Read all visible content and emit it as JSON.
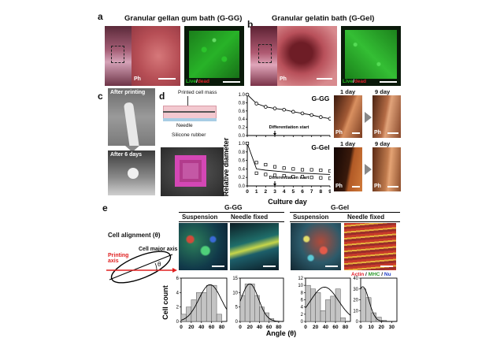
{
  "panels": {
    "a": {
      "letter": "a",
      "title": "Granular gellan gum bath (G-GG)",
      "ph": "Ph",
      "live": "Live",
      "slash": "/",
      "dead": "dead"
    },
    "b": {
      "letter": "b",
      "title": "Granular gelatin bath (G-Gel)",
      "ph": "Ph",
      "live": "Live",
      "slash": "/",
      "dead": "dead"
    },
    "c": {
      "letter": "c",
      "after_printing": "After printing",
      "after_6_days": "After 6 days"
    },
    "d": {
      "letter": "d",
      "printed_cell_mass": "Printed cell mass",
      "needle": "Needle",
      "silicone_rubber": "Silicone rubber",
      "day1": "1 day",
      "day9": "9 day",
      "ph": "Ph"
    },
    "e": {
      "letter": "e",
      "cell_alignment": "Cell alignment (θ)",
      "printing_axis_1": "Printing",
      "printing_axis_2": "axis",
      "cell_major_axis": "Cell major axis",
      "theta": "θ",
      "gg_title": "G-GG",
      "gel_title": "G-Gel",
      "suspension": "Suspension",
      "needle_fixed": "Needle fixed",
      "legend_actin": "Actin",
      "legend_slash1": " / ",
      "legend_mhc": "MHC",
      "legend_slash2": " / ",
      "legend_nu": "Nu"
    }
  },
  "colors": {
    "actin": "#e0202a",
    "mhc": "#2f9a2f",
    "nu": "#1f3cc8",
    "live": "#1fbf1f",
    "dead": "#e0202a"
  },
  "chart_data": [
    {
      "type": "line",
      "panel": "d",
      "title": "G-GG",
      "xlabel": "Culture day",
      "ylabel": "Relative diameter",
      "x": [
        0,
        1,
        2,
        3,
        4,
        5,
        6,
        7,
        8,
        9
      ],
      "xlim": [
        0,
        9
      ],
      "ylim": [
        0.0,
        1.0
      ],
      "yticks": [
        "0.0",
        "0.2",
        "0.4",
        "0.6",
        "0.8",
        "1.0"
      ],
      "series": [
        {
          "values": [
            1.0,
            0.78,
            0.7,
            0.66,
            0.63,
            0.58,
            0.54,
            0.5,
            0.45,
            0.41
          ]
        }
      ],
      "annotation": "Differentiation start",
      "annotation_day": 3
    },
    {
      "type": "scatter",
      "panel": "d",
      "title": "G-Gel",
      "xlabel": "Culture day",
      "ylabel": "Relative diameter",
      "x": [
        0,
        1,
        2,
        3,
        4,
        5,
        6,
        7,
        8,
        9
      ],
      "xlim": [
        0,
        9
      ],
      "ylim": [
        0.0,
        1.0
      ],
      "yticks": [
        "0.0",
        "0.2",
        "0.4",
        "0.6",
        "0.8",
        "1.0"
      ],
      "series": [
        {
          "values": [
            1.0,
            0.55,
            0.5,
            0.45,
            0.42,
            0.4,
            0.38,
            0.38,
            0.37,
            0.35
          ]
        },
        {
          "values": [
            1.0,
            0.3,
            0.27,
            0.25,
            0.24,
            0.22,
            0.22,
            0.2,
            0.19,
            0.18
          ]
        }
      ],
      "trend": [
        1.0,
        0.4,
        0.37,
        0.35,
        0.33,
        0.31,
        0.3,
        0.29,
        0.28,
        0.27
      ],
      "annotation": "Differentiation start",
      "annotation_day": 3
    },
    {
      "type": "bar",
      "panel": "e",
      "group": "G-GG",
      "condition": "Suspension",
      "xlabel": "",
      "ylabel": "Cell count",
      "categories": [
        "0-10",
        "10-20",
        "20-30",
        "30-40",
        "40-50",
        "50-60",
        "60-70",
        "70-80"
      ],
      "values": [
        1,
        2,
        3,
        4,
        4,
        5,
        5,
        1
      ],
      "xticks": [
        "0",
        "20",
        "40",
        "60",
        "80"
      ],
      "xlim": [
        0,
        90
      ],
      "ylim": [
        0,
        6
      ],
      "yticks": [
        "0",
        "2",
        "4",
        "6"
      ],
      "fit_peak": 57,
      "fit_sigma": 22,
      "fit_height": 5.1
    },
    {
      "type": "bar",
      "panel": "e",
      "group": "G-GG",
      "condition": "Needle fixed",
      "xlabel": "",
      "ylabel": "",
      "categories": [
        "0-10",
        "10-20",
        "20-30",
        "30-40",
        "40-50",
        "50-60",
        "60-70",
        "70-80"
      ],
      "values": [
        9,
        13,
        13,
        9,
        5,
        3,
        1,
        0
      ],
      "xticks": [
        "0",
        "20",
        "40",
        "60",
        "80"
      ],
      "xlim": [
        0,
        90
      ],
      "ylim": [
        0,
        15
      ],
      "yticks": [
        "0",
        "5",
        "10",
        "15"
      ],
      "fit_peak": 20,
      "fit_sigma": 18,
      "fit_height": 13
    },
    {
      "type": "bar",
      "panel": "e",
      "group": "G-Gel",
      "condition": "Suspension",
      "xlabel": "",
      "ylabel": "",
      "categories": [
        "0-10",
        "10-20",
        "20-30",
        "30-40",
        "40-50",
        "50-60",
        "60-70",
        "70-80"
      ],
      "values": [
        10,
        9,
        8,
        3,
        6,
        7,
        9,
        1
      ],
      "xticks": [
        "0",
        "20",
        "40",
        "60",
        "80"
      ],
      "xlim": [
        0,
        90
      ],
      "ylim": [
        0,
        12
      ],
      "yticks": [
        "0",
        "2",
        "4",
        "6",
        "8",
        "10",
        "12"
      ],
      "fit_peak": 38,
      "fit_sigma": 28,
      "fit_height": 9.5
    },
    {
      "type": "bar",
      "panel": "e",
      "group": "G-Gel",
      "condition": "Needle fixed",
      "xlabel": "Angle (θ)",
      "ylabel": "",
      "categories": [
        "0-5",
        "5-10",
        "10-15",
        "15-20",
        "20-25",
        "25-30"
      ],
      "bin_edges": [
        0,
        5,
        10,
        15,
        20,
        25,
        30
      ],
      "values": [
        30,
        22,
        8,
        4,
        1,
        0
      ],
      "xticks": [
        "0",
        "10",
        "20",
        "30"
      ],
      "xlim": [
        0,
        35
      ],
      "ylim": [
        0,
        40
      ],
      "yticks": [
        "0",
        "10",
        "20",
        "30",
        "40"
      ],
      "fit_peak": 2,
      "fit_sigma": 6,
      "fit_height": 32
    }
  ]
}
